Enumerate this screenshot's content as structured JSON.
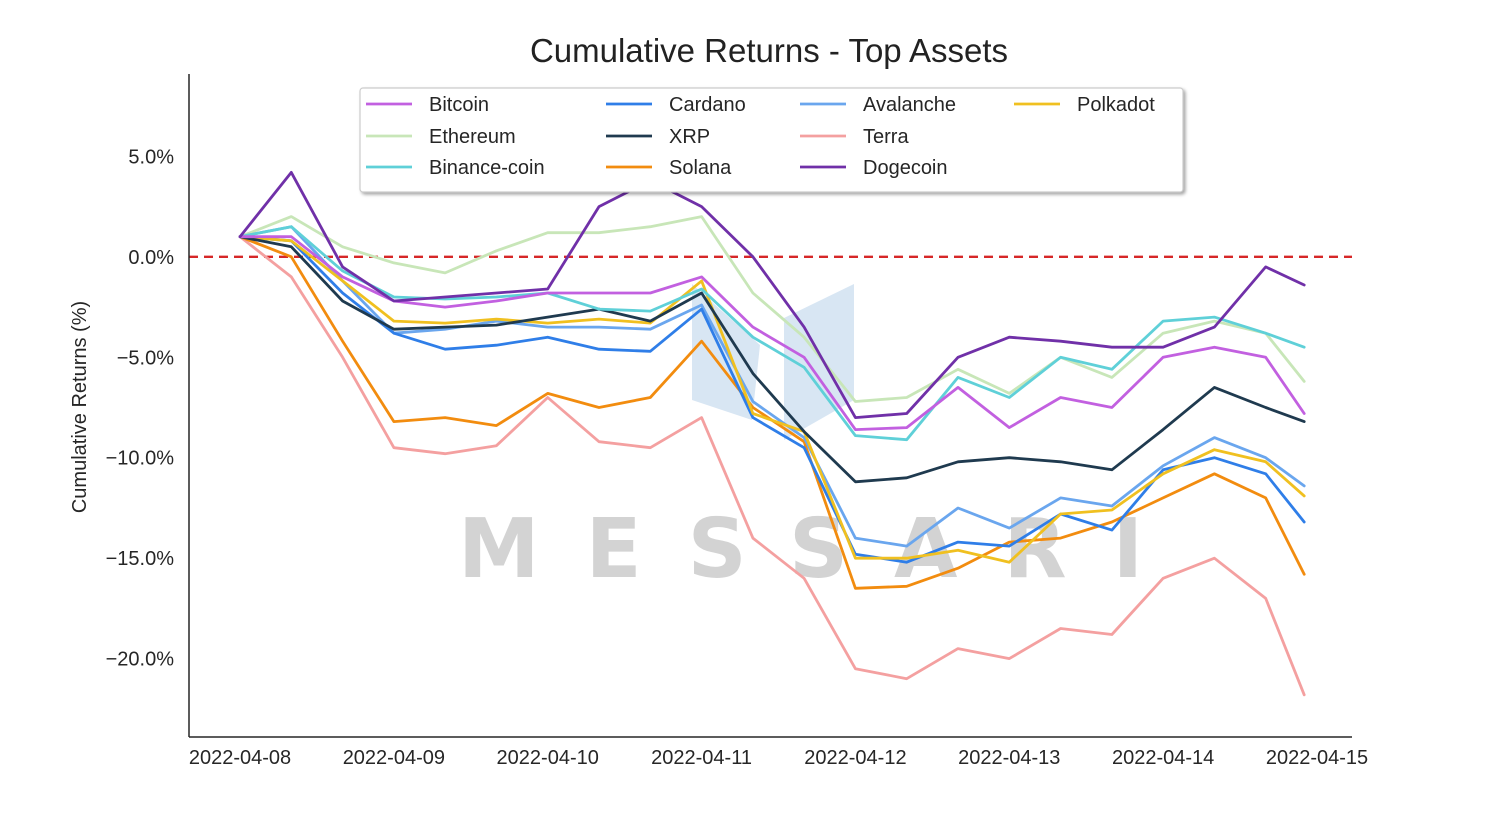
{
  "chart_data": {
    "type": "line",
    "title": "Cumulative Returns - Top Assets",
    "xlabel": "",
    "ylabel": "Cumulative Returns (%)",
    "watermark": "MESSARI",
    "x_domain": [
      "2022-04-08T00:00",
      "2022-04-15T00:00"
    ],
    "x_ticks": [
      "2022-04-08",
      "2022-04-09",
      "2022-04-10",
      "2022-04-11",
      "2022-04-12",
      "2022-04-13",
      "2022-04-14",
      "2022-04-15"
    ],
    "ylim": [
      -23.9,
      9.1
    ],
    "y_ticks": [
      5,
      0,
      -5,
      -10,
      -15,
      -20
    ],
    "y_tick_labels": [
      "5.0%",
      "0.0%",
      "−5.0%",
      "−10.0%",
      "−15.0%",
      "−20.0%"
    ],
    "reference_line": {
      "y": 0,
      "color": "#d62728",
      "style": "dashed"
    },
    "legend_position": "top-center",
    "grid": false,
    "x": [
      "2022-04-08T00:00",
      "2022-04-08T08:00",
      "2022-04-08T16:00",
      "2022-04-09T00:00",
      "2022-04-09T08:00",
      "2022-04-09T16:00",
      "2022-04-10T00:00",
      "2022-04-10T08:00",
      "2022-04-10T16:00",
      "2022-04-11T00:00",
      "2022-04-11T08:00",
      "2022-04-11T16:00",
      "2022-04-12T00:00",
      "2022-04-12T08:00",
      "2022-04-12T16:00",
      "2022-04-13T00:00",
      "2022-04-13T08:00",
      "2022-04-13T16:00",
      "2022-04-14T00:00",
      "2022-04-14T08:00",
      "2022-04-14T16:00",
      "2022-04-14T22:00"
    ],
    "series": [
      {
        "name": "Bitcoin",
        "color": "#c260e0",
        "values": [
          1.0,
          1.0,
          -1.0,
          -2.2,
          -2.5,
          -2.2,
          -1.8,
          -1.8,
          -1.8,
          -1.0,
          -3.5,
          -5.0,
          -8.6,
          -8.5,
          -6.5,
          -8.5,
          -7.0,
          -7.5,
          -5.0,
          -4.5,
          -5.0,
          -7.8
        ]
      },
      {
        "name": "Ethereum",
        "color": "#c8e6b8",
        "values": [
          1.0,
          2.0,
          0.5,
          -0.3,
          -0.8,
          0.3,
          1.2,
          1.2,
          1.5,
          2.0,
          -1.8,
          -4.0,
          -7.2,
          -7.0,
          -5.6,
          -6.8,
          -5.0,
          -6.0,
          -3.8,
          -3.2,
          -3.8,
          -6.2
        ]
      },
      {
        "name": "Binance-coin",
        "color": "#5fd0d8",
        "values": [
          1.0,
          1.5,
          -0.7,
          -2.0,
          -2.1,
          -2.0,
          -1.8,
          -2.6,
          -2.7,
          -1.6,
          -4.0,
          -5.5,
          -8.9,
          -9.1,
          -6.0,
          -7.0,
          -5.0,
          -5.6,
          -3.2,
          -3.0,
          -3.8,
          -4.5
        ]
      },
      {
        "name": "Cardano",
        "color": "#2f7ee8",
        "values": [
          1.0,
          0.8,
          -1.8,
          -3.8,
          -4.6,
          -4.4,
          -4.0,
          -4.6,
          -4.7,
          -2.6,
          -8.0,
          -9.5,
          -14.8,
          -15.2,
          -14.2,
          -14.4,
          -12.8,
          -13.6,
          -10.6,
          -10.0,
          -10.8,
          -13.2
        ]
      },
      {
        "name": "XRP",
        "color": "#1f3a4f",
        "values": [
          1.0,
          0.5,
          -2.2,
          -3.6,
          -3.5,
          -3.4,
          -3.0,
          -2.6,
          -3.2,
          -1.8,
          -5.8,
          -8.7,
          -11.2,
          -11.0,
          -10.2,
          -10.0,
          -10.2,
          -10.6,
          -8.6,
          -6.5,
          -7.5,
          -8.2
        ]
      },
      {
        "name": "Solana",
        "color": "#f28c0f",
        "values": [
          1.0,
          0.0,
          -4.2,
          -8.2,
          -8.0,
          -8.4,
          -6.8,
          -7.5,
          -7.0,
          -4.2,
          -7.5,
          -9.2,
          -16.5,
          -16.4,
          -15.5,
          -14.2,
          -14.0,
          -13.2,
          -12.0,
          -10.8,
          -12.0,
          -15.8
        ]
      },
      {
        "name": "Avalanche",
        "color": "#6aa6ee",
        "values": [
          1.0,
          1.5,
          -1.2,
          -3.8,
          -3.6,
          -3.2,
          -3.5,
          -3.5,
          -3.6,
          -2.4,
          -7.2,
          -9.0,
          -14.0,
          -14.4,
          -12.5,
          -13.5,
          -12.0,
          -12.4,
          -10.4,
          -9.0,
          -10.0,
          -11.4
        ]
      },
      {
        "name": "Terra",
        "color": "#f4a0a0",
        "values": [
          1.0,
          -1.0,
          -5.0,
          -9.5,
          -9.8,
          -9.4,
          -7.0,
          -9.2,
          -9.5,
          -8.0,
          -14.0,
          -16.0,
          -20.5,
          -21.0,
          -19.5,
          -20.0,
          -18.5,
          -18.8,
          -16.0,
          -15.0,
          -17.0,
          -21.8
        ]
      },
      {
        "name": "Dogecoin",
        "color": "#7030a8",
        "values": [
          1.0,
          4.2,
          -0.5,
          -2.2,
          -2.0,
          -1.8,
          -1.6,
          2.5,
          3.8,
          2.5,
          0.0,
          -3.5,
          -8.0,
          -7.8,
          -5.0,
          -4.0,
          -4.2,
          -4.5,
          -4.5,
          -3.5,
          -0.5,
          -1.4
        ]
      },
      {
        "name": "Polkadot",
        "color": "#f0c020",
        "values": [
          1.0,
          0.8,
          -1.2,
          -3.2,
          -3.3,
          -3.1,
          -3.3,
          -3.1,
          -3.3,
          -1.2,
          -7.8,
          -8.7,
          -15.0,
          -15.0,
          -14.6,
          -15.2,
          -12.8,
          -12.6,
          -10.8,
          -9.6,
          -10.2,
          -11.9
        ]
      }
    ]
  }
}
